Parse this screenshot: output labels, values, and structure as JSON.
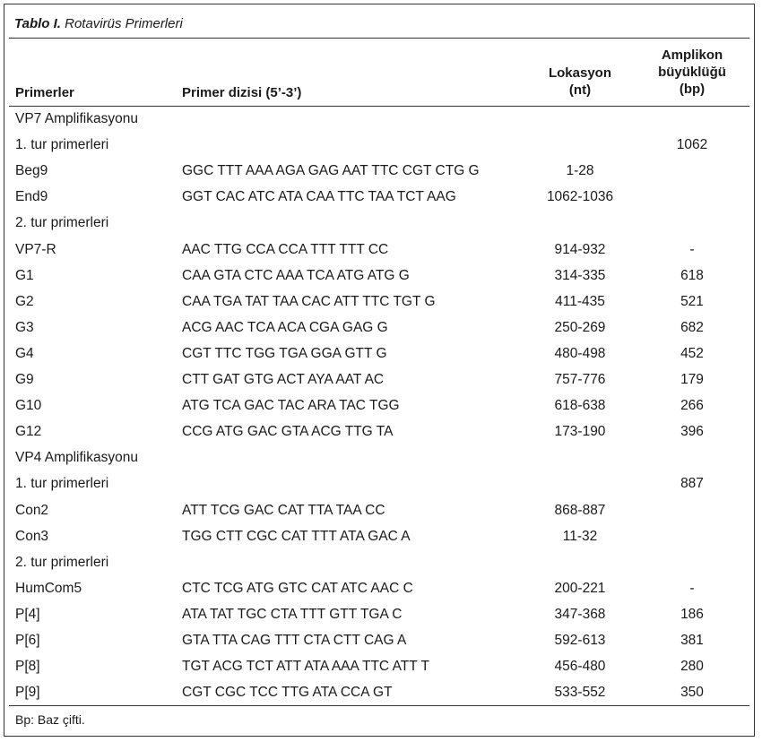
{
  "table": {
    "caption_bold": "Tablo I.",
    "caption_rest": " Rotavirüs Primerleri",
    "headers": {
      "col1": "Primerler",
      "col2": "Primer dizisi (5’-3’)",
      "col3_line1": "Lokasyon",
      "col3_line2": "(nt)",
      "col4_line1": "Amplikon",
      "col4_line2": "büyüklüğü",
      "col4_line3": "(bp)"
    },
    "rows": [
      {
        "name": "VP7 Amplifikasyonu",
        "seq": "",
        "loc": "",
        "amp": ""
      },
      {
        "name": "1. tur primerleri",
        "seq": "",
        "loc": "",
        "amp": "1062"
      },
      {
        "name": "Beg9",
        "seq": "GGC TTT AAA AGA GAG AAT TTC CGT CTG G",
        "loc": "1-28",
        "amp": ""
      },
      {
        "name": "End9",
        "seq": "GGT CAC ATC ATA CAA TTC TAA TCT AAG",
        "loc": "1062-1036",
        "amp": ""
      },
      {
        "name": "2. tur primerleri",
        "seq": "",
        "loc": "",
        "amp": ""
      },
      {
        "name": "VP7-R",
        "seq": "AAC TTG CCA CCA TTT TTT CC",
        "loc": "914-932",
        "amp": "-"
      },
      {
        "name": "G1",
        "seq": "CAA GTA CTC AAA TCA ATG ATG G",
        "loc": "314-335",
        "amp": "618"
      },
      {
        "name": "G2",
        "seq": "CAA TGA TAT TAA CAC ATT TTC TGT G",
        "loc": "411-435",
        "amp": "521"
      },
      {
        "name": "G3",
        "seq": "ACG AAC TCA ACA CGA GAG G",
        "loc": "250-269",
        "amp": "682"
      },
      {
        "name": "G4",
        "seq": "CGT TTC TGG TGA GGA GTT G",
        "loc": "480-498",
        "amp": "452"
      },
      {
        "name": "G9",
        "seq": "CTT GAT GTG ACT AYA AAT AC",
        "loc": "757-776",
        "amp": "179"
      },
      {
        "name": "G10",
        "seq": "ATG TCA GAC TAC ARA TAC TGG",
        "loc": "618-638",
        "amp": "266"
      },
      {
        "name": "G12",
        "seq": "CCG ATG GAC GTA ACG TTG TA",
        "loc": "173-190",
        "amp": "396"
      },
      {
        "name": "VP4 Amplifikasyonu",
        "seq": "",
        "loc": "",
        "amp": ""
      },
      {
        "name": "1. tur primerleri",
        "seq": "",
        "loc": "",
        "amp": "887"
      },
      {
        "name": "Con2",
        "seq": "ATT TCG GAC CAT TTA TAA CC",
        "loc": "868-887",
        "amp": ""
      },
      {
        "name": "Con3",
        "seq": "TGG CTT CGC CAT TTT ATA GAC A",
        "loc": "11-32",
        "amp": ""
      },
      {
        "name": "2. tur primerleri",
        "seq": "",
        "loc": "",
        "amp": ""
      },
      {
        "name": "HumCom5",
        "seq": "CTC TCG ATG GTC CAT ATC AAC C",
        "loc": "200-221",
        "amp": "-"
      },
      {
        "name": "P[4]",
        "seq": "ATA TAT TGC CTA TTT GTT TGA C",
        "loc": "347-368",
        "amp": "186"
      },
      {
        "name": "P[6]",
        "seq": "GTA TTA CAG TTT CTA CTT CAG A",
        "loc": "592-613",
        "amp": "381"
      },
      {
        "name": "P[8]",
        "seq": "TGT ACG TCT ATT ATA AAA TTC ATT T",
        "loc": "456-480",
        "amp": "280"
      },
      {
        "name": "P[9]",
        "seq": "CGT CGC TCC TTG ATA CCA GT",
        "loc": "533-552",
        "amp": "350"
      }
    ],
    "footnote": "Bp: Baz çifti."
  }
}
